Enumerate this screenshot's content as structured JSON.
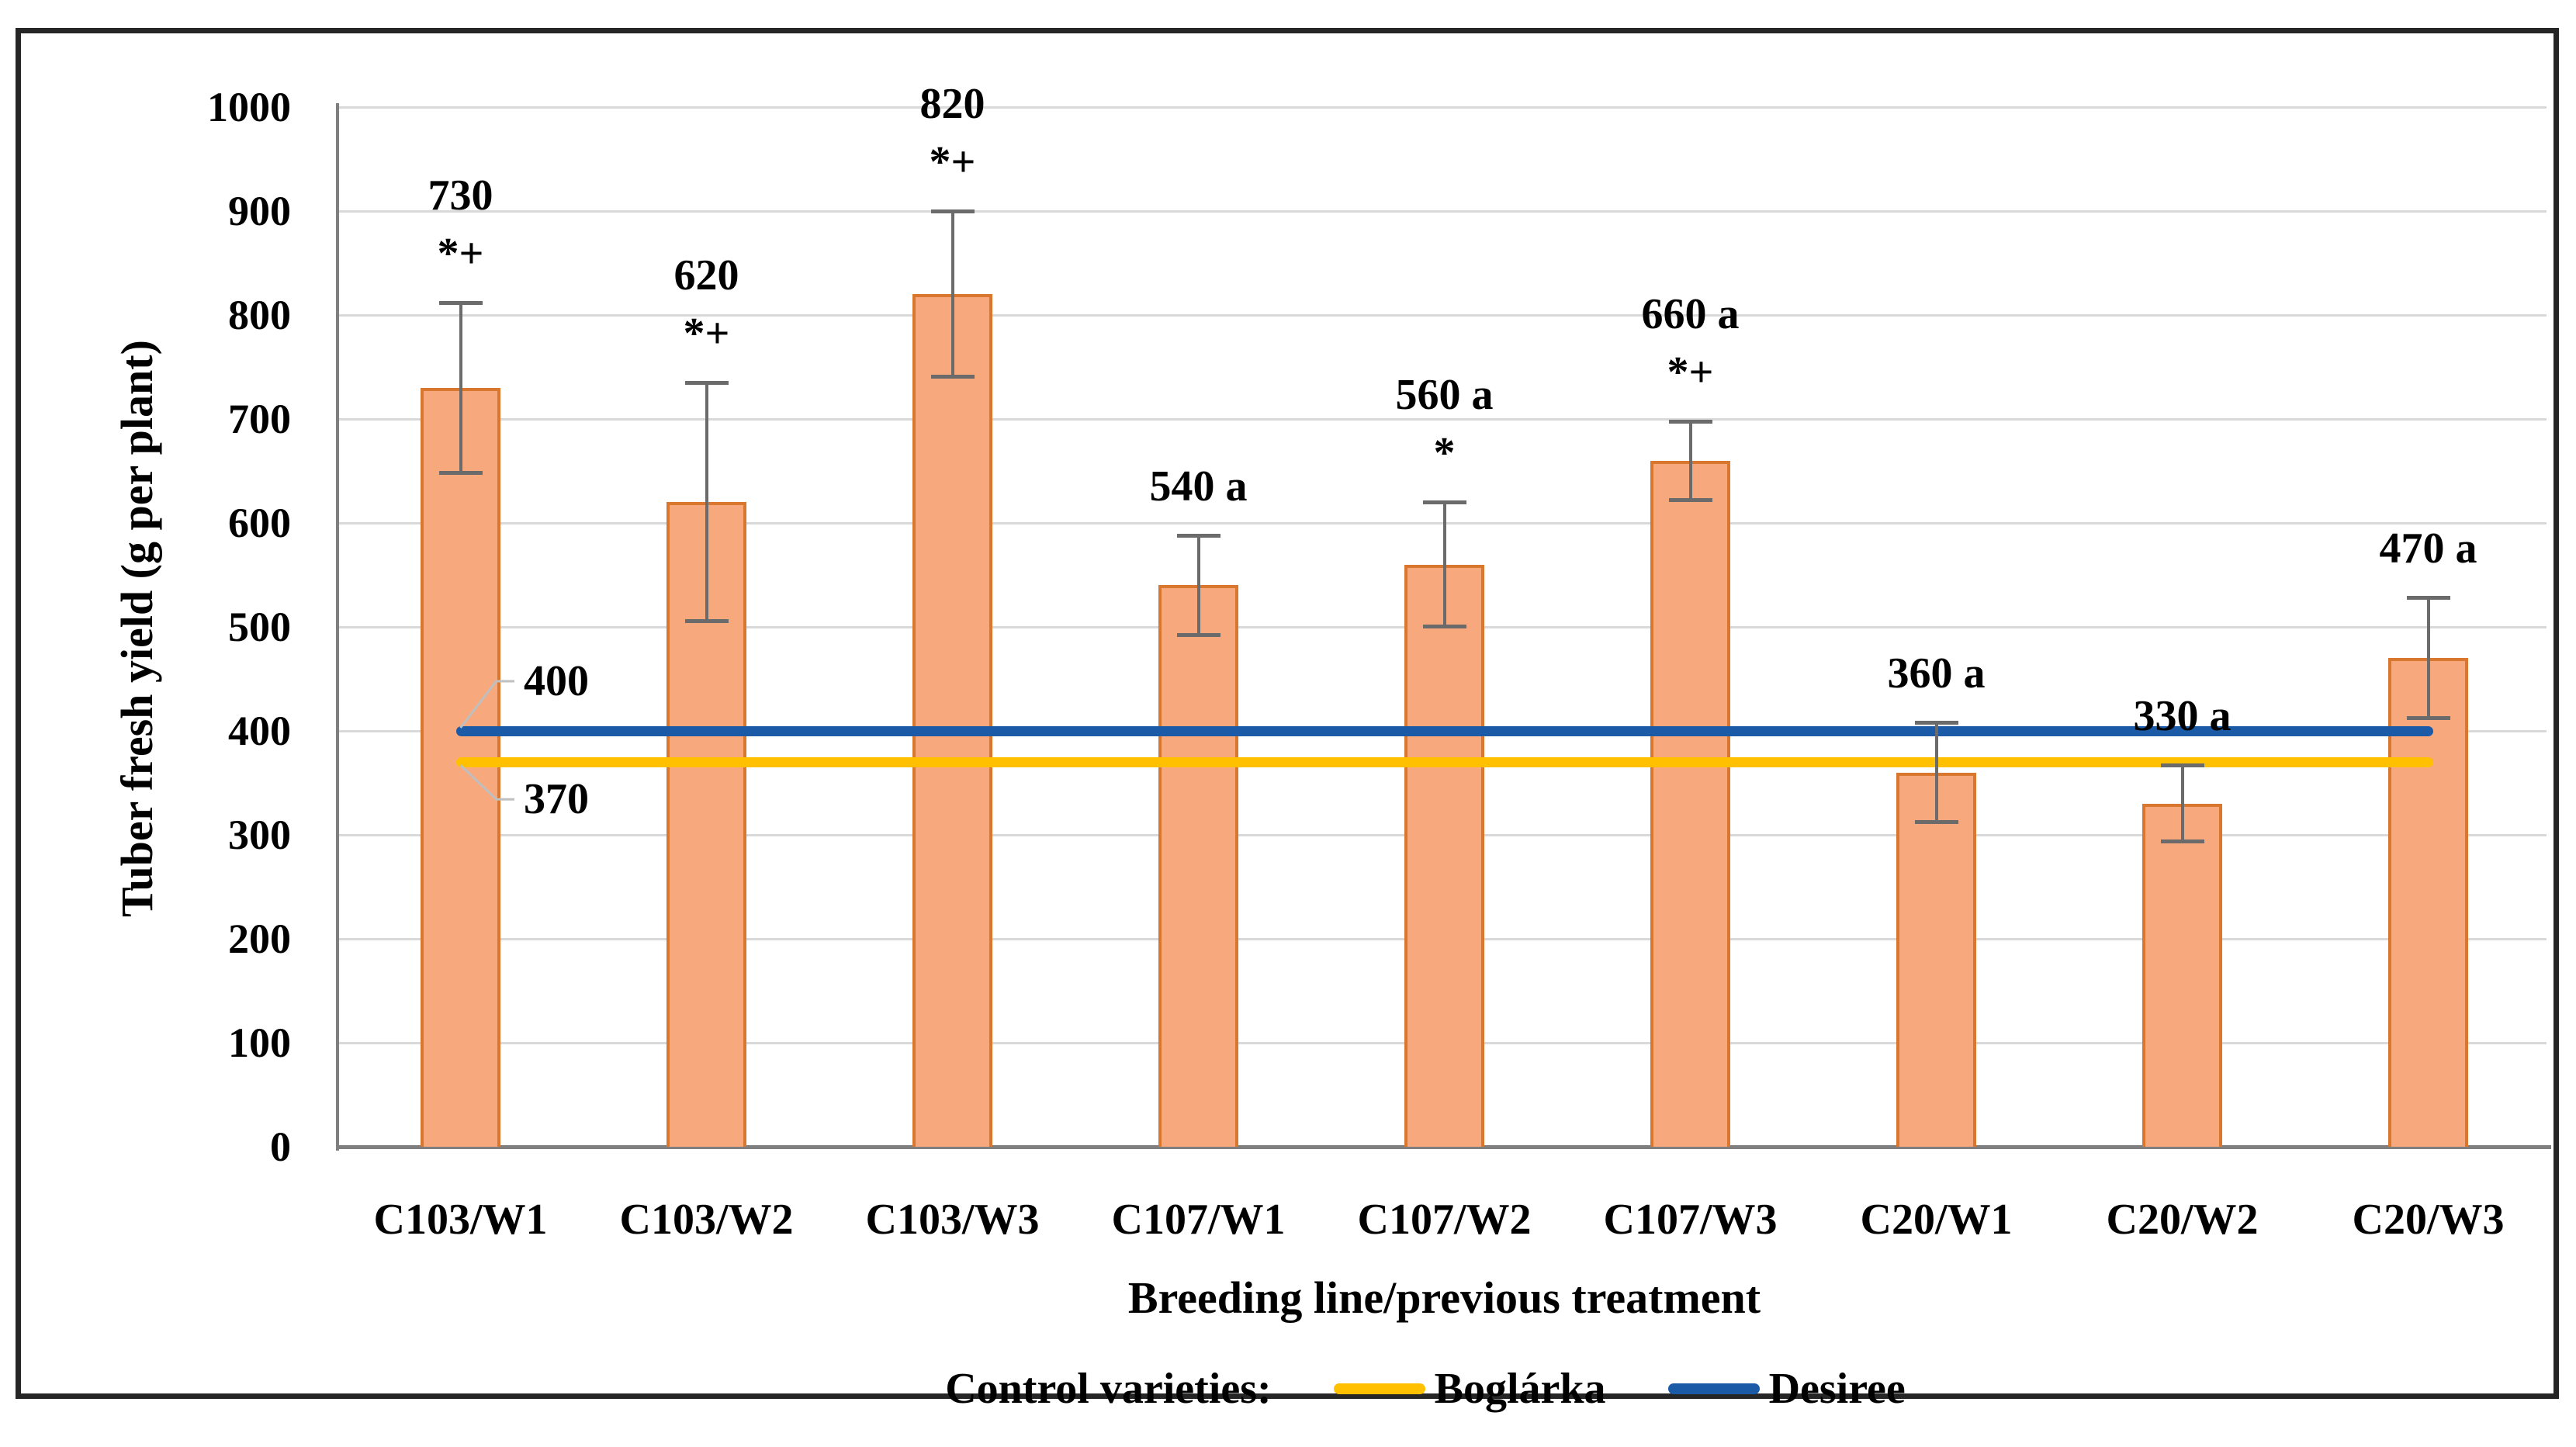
{
  "chart_data": {
    "type": "bar",
    "title": "",
    "xlabel": "Breeding line/previous treatment",
    "ylabel": "Tuber fresh yield (g per plant)",
    "ylim": [
      0,
      1000
    ],
    "ytick_step": 100,
    "grid": true,
    "categories": [
      "C103/W1",
      "C103/W2",
      "C103/W3",
      "C107/W1",
      "C107/W2",
      "C107/W3",
      "C20/W1",
      "C20/W2",
      "C20/W3"
    ],
    "values": [
      730,
      620,
      820,
      540,
      560,
      660,
      360,
      330,
      470
    ],
    "bar_labels": [
      "730",
      "620",
      "820",
      "540 a",
      "560 a",
      "660 a",
      "360 a",
      "330 a",
      "470 a"
    ],
    "significance_symbols": [
      "*+",
      "*+",
      "*+",
      "",
      "*",
      "*+",
      "",
      "",
      ""
    ],
    "error_bars": [
      82,
      115,
      80,
      48,
      60,
      38,
      48,
      37,
      58
    ],
    "reference_lines": [
      {
        "name": "Desiree",
        "value": 400,
        "label": "400",
        "color": "#1a5aa6",
        "label_side": "above"
      },
      {
        "name": "Boglárka",
        "value": 370,
        "label": "370",
        "color": "#ffc000",
        "label_side": "below"
      }
    ],
    "legend": {
      "title": "Control varieties:",
      "position": "bottom",
      "entries": [
        {
          "name": "Boglárka",
          "color": "#ffc000"
        },
        {
          "name": "Desiree",
          "color": "#1a5aa6"
        }
      ]
    }
  },
  "colors": {
    "bar_fill": "#f8a87d",
    "bar_border": "#d9772f",
    "error_bar": "#6b6b6b",
    "gridline": "#d9d9d9",
    "axis_line": "#7f7f7f",
    "leader_line": "#bfbfbf",
    "text": "#000000"
  }
}
